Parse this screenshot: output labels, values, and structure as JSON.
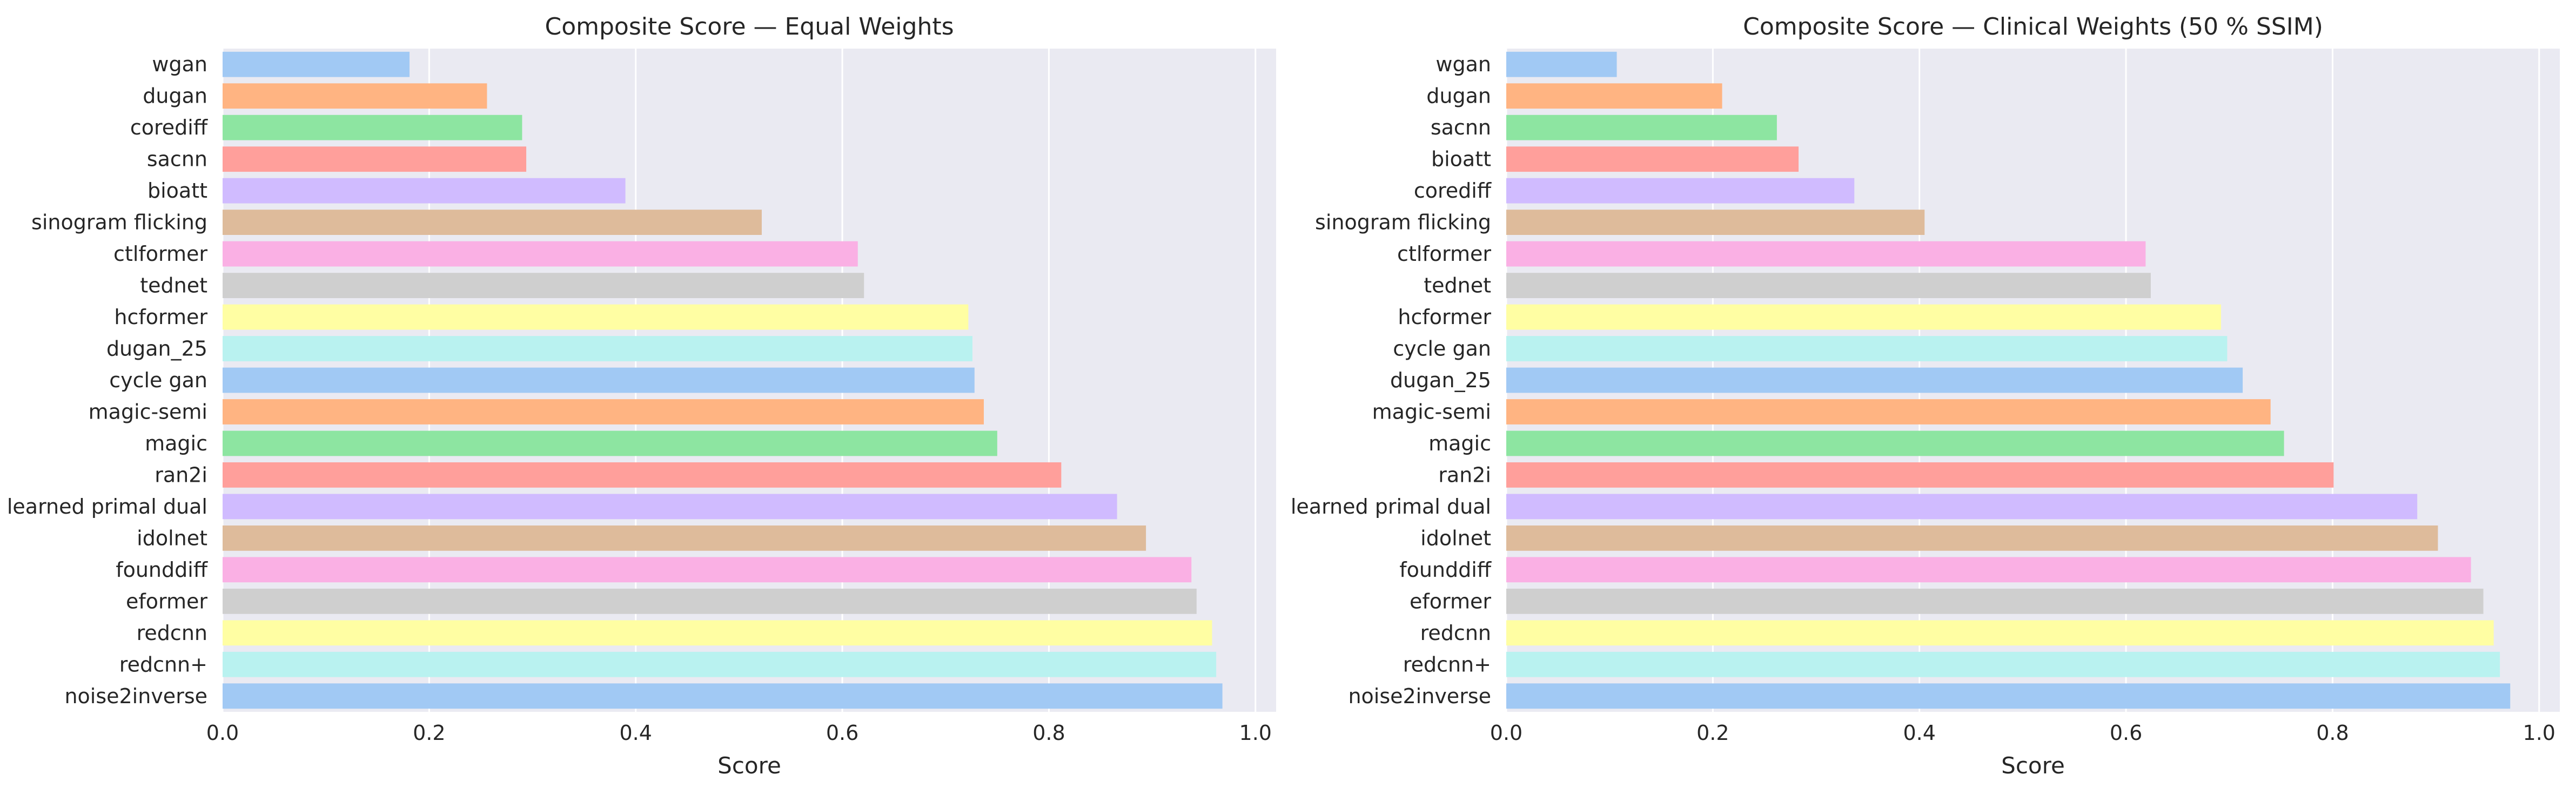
{
  "palette": [
    "#a1c9f4",
    "#ffb482",
    "#8de5a1",
    "#ff9f9b",
    "#d0bbff",
    "#debb9b",
    "#fab0e4",
    "#cfcfcf",
    "#fffea3",
    "#b9f2f0"
  ],
  "chart_data": [
    {
      "type": "bar",
      "orientation": "horizontal",
      "title": "Composite Score — Equal Weights",
      "xlabel": "Score",
      "ylabel": "",
      "xlim": [
        0,
        1.02
      ],
      "xticks": [
        "0.0",
        "0.2",
        "0.4",
        "0.6",
        "0.8",
        "1.0"
      ],
      "grid": true,
      "categories": [
        "wgan",
        "dugan",
        "corediff",
        "sacnn",
        "bioatt",
        "sinogram flicking",
        "ctlformer",
        "tednet",
        "hcformer",
        "dugan_25",
        "cycle gan",
        "magic-semi",
        "magic",
        "ran2i",
        "learned primal dual",
        "idolnet",
        "founddiff",
        "eformer",
        "redcnn",
        "redcnn+",
        "noise2inverse"
      ],
      "values": [
        0.181,
        0.256,
        0.29,
        0.294,
        0.39,
        0.522,
        0.615,
        0.621,
        0.722,
        0.726,
        0.728,
        0.737,
        0.75,
        0.812,
        0.866,
        0.894,
        0.938,
        0.943,
        0.958,
        0.962,
        0.968
      ]
    },
    {
      "type": "bar",
      "orientation": "horizontal",
      "title": "Composite Score — Clinical Weights (50 % SSIM)",
      "xlabel": "Score",
      "ylabel": "",
      "xlim": [
        0,
        1.02
      ],
      "xticks": [
        "0.0",
        "0.2",
        "0.4",
        "0.6",
        "0.8",
        "1.0"
      ],
      "grid": true,
      "categories": [
        "wgan",
        "dugan",
        "sacnn",
        "bioatt",
        "corediff",
        "sinogram flicking",
        "ctlformer",
        "tednet",
        "hcformer",
        "cycle gan",
        "dugan_25",
        "magic-semi",
        "magic",
        "ran2i",
        "learned primal dual",
        "idolnet",
        "founddiff",
        "eformer",
        "redcnn",
        "redcnn+",
        "noise2inverse"
      ],
      "values": [
        0.107,
        0.209,
        0.262,
        0.283,
        0.337,
        0.405,
        0.619,
        0.624,
        0.692,
        0.698,
        0.713,
        0.74,
        0.753,
        0.801,
        0.882,
        0.902,
        0.934,
        0.946,
        0.956,
        0.962,
        0.972
      ]
    }
  ]
}
